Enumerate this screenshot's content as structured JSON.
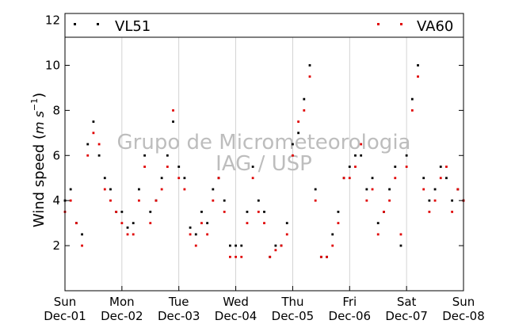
{
  "chart_data": {
    "type": "scatter",
    "title": "",
    "xlabel": "",
    "ylabel": "Wind speed (",
    "ylabel_unit_base": "m s",
    "ylabel_unit_exp": "−1",
    "ylabel_close": ")",
    "xlim": [
      0,
      7
    ],
    "ylim": [
      0,
      12.3
    ],
    "x_tick_values": [
      0,
      1,
      2,
      3,
      4,
      5,
      6,
      7
    ],
    "x_tick_labels": [
      {
        "day": "Sun",
        "date": "Dec-01"
      },
      {
        "day": "Mon",
        "date": "Dec-02"
      },
      {
        "day": "Tue",
        "date": "Dec-03"
      },
      {
        "day": "Wed",
        "date": "Dec-04"
      },
      {
        "day": "Thu",
        "date": "Dec-05"
      },
      {
        "day": "Fri",
        "date": "Dec-06"
      },
      {
        "day": "Sat",
        "date": "Dec-07"
      },
      {
        "day": "Sun",
        "date": "Dec-08"
      }
    ],
    "y_ticks": [
      2,
      4,
      6,
      8,
      10,
      12
    ],
    "y_tick_labels": [
      "2",
      "4",
      "6",
      "8",
      "10",
      "12"
    ],
    "grid": "vertical at day boundaries",
    "legend_placement": "top, full width",
    "watermark": [
      "Grupo de Micrometeorologia",
      "IAG / USP"
    ],
    "series": [
      {
        "name": "VL51",
        "color": "#000000",
        "marker": "square",
        "x": [
          0.0,
          0.1,
          0.2,
          0.3,
          0.4,
          0.5,
          0.6,
          0.7,
          0.8,
          0.9,
          1.0,
          1.1,
          1.2,
          1.3,
          1.4,
          1.5,
          1.6,
          1.7,
          1.8,
          1.9,
          2.0,
          2.1,
          2.2,
          2.3,
          2.4,
          2.5,
          2.6,
          2.7,
          2.8,
          2.9,
          3.0,
          3.1,
          3.2,
          3.3,
          3.4,
          3.5,
          3.6,
          3.7,
          3.8,
          3.9,
          4.0,
          4.1,
          4.2,
          4.3,
          4.4,
          4.5,
          4.6,
          4.7,
          4.8,
          4.9,
          5.0,
          5.1,
          5.2,
          5.3,
          5.4,
          5.5,
          5.6,
          5.7,
          5.8,
          5.9,
          6.0,
          6.1,
          6.2,
          6.3,
          6.4,
          6.5,
          6.6,
          6.7,
          6.8,
          6.9,
          7.0
        ],
        "y": [
          4.0,
          4.5,
          3.0,
          2.5,
          6.5,
          7.5,
          6.0,
          5.0,
          4.5,
          3.5,
          3.5,
          2.8,
          3.0,
          4.5,
          6.0,
          3.5,
          4.0,
          5.0,
          6.0,
          7.5,
          5.5,
          5.0,
          2.8,
          2.5,
          3.5,
          3.0,
          4.5,
          5.0,
          4.0,
          2.0,
          2.0,
          2.0,
          3.5,
          5.5,
          4.0,
          3.5,
          1.5,
          2.0,
          2.0,
          3.0,
          6.5,
          7.0,
          8.5,
          10.0,
          4.5,
          1.5,
          1.5,
          2.5,
          3.5,
          5.0,
          5.5,
          6.0,
          6.0,
          4.5,
          5.0,
          3.0,
          3.5,
          4.5,
          5.5,
          2.0,
          6.0,
          8.5,
          10.0,
          5.0,
          4.0,
          4.5,
          5.5,
          5.0,
          4.0,
          4.5,
          4.0
        ]
      },
      {
        "name": "VA60",
        "color": "#e00000",
        "marker": "square",
        "x": [
          0.0,
          0.1,
          0.2,
          0.3,
          0.4,
          0.5,
          0.6,
          0.7,
          0.8,
          0.9,
          1.0,
          1.1,
          1.2,
          1.3,
          1.4,
          1.5,
          1.6,
          1.7,
          1.8,
          1.9,
          2.0,
          2.1,
          2.2,
          2.3,
          2.4,
          2.5,
          2.6,
          2.7,
          2.8,
          2.9,
          3.0,
          3.1,
          3.2,
          3.3,
          3.4,
          3.5,
          3.6,
          3.7,
          3.8,
          3.9,
          4.0,
          4.1,
          4.2,
          4.3,
          4.4,
          4.5,
          4.6,
          4.7,
          4.8,
          4.9,
          5.0,
          5.1,
          5.2,
          5.3,
          5.4,
          5.5,
          5.6,
          5.7,
          5.8,
          5.9,
          6.0,
          6.1,
          6.2,
          6.3,
          6.4,
          6.5,
          6.6,
          6.7,
          6.8,
          6.9,
          7.0
        ],
        "y": [
          3.5,
          4.0,
          3.0,
          2.0,
          6.0,
          7.0,
          6.5,
          4.5,
          4.0,
          3.5,
          3.0,
          2.5,
          2.5,
          4.0,
          5.5,
          3.0,
          4.0,
          4.5,
          5.5,
          8.0,
          5.0,
          4.5,
          2.5,
          2.0,
          3.0,
          2.5,
          4.0,
          5.0,
          3.5,
          1.5,
          1.5,
          1.5,
          3.0,
          5.0,
          3.5,
          3.0,
          1.5,
          1.8,
          2.0,
          2.5,
          6.0,
          7.5,
          8.0,
          9.5,
          4.0,
          1.5,
          1.5,
          2.0,
          3.0,
          5.0,
          5.0,
          5.5,
          6.5,
          4.0,
          4.5,
          2.5,
          3.5,
          4.0,
          5.0,
          2.5,
          5.5,
          8.0,
          9.5,
          4.5,
          3.5,
          4.0,
          5.0,
          5.5,
          3.5,
          4.5,
          4.0
        ]
      }
    ]
  }
}
